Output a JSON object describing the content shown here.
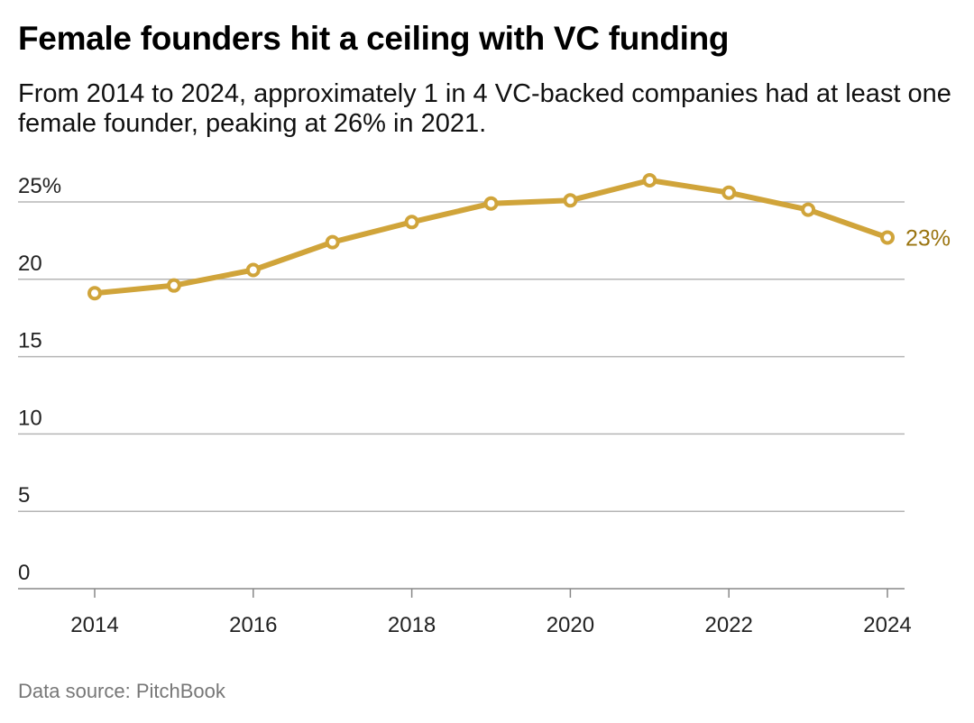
{
  "chart_data": {
    "type": "line",
    "title": "Female founders hit a ceiling with VC funding",
    "subtitle": "From 2014 to 2024, approximately 1 in 4 VC-backed companies had at least one female founder, peaking at 26% in 2021.",
    "source": "Data source: PitchBook",
    "x": [
      2014,
      2015,
      2016,
      2017,
      2018,
      2019,
      2020,
      2021,
      2022,
      2023,
      2024
    ],
    "series": [
      {
        "values": [
          19.1,
          19.6,
          20.6,
          22.4,
          23.7,
          24.9,
          25.1,
          26.4,
          25.6,
          24.5,
          22.7
        ],
        "color": "#d0a43a"
      }
    ],
    "end_label": "23%",
    "end_label_color": "#9a7410",
    "ylim": [
      0,
      25
    ],
    "yticks": [
      {
        "value": 0,
        "label": "0"
      },
      {
        "value": 5,
        "label": "5"
      },
      {
        "value": 10,
        "label": "10"
      },
      {
        "value": 15,
        "label": "15"
      },
      {
        "value": 20,
        "label": "20"
      },
      {
        "value": 25,
        "label": "25%"
      }
    ],
    "xticks": [
      {
        "value": 2014,
        "label": "2014"
      },
      {
        "value": 2016,
        "label": "2016"
      },
      {
        "value": 2018,
        "label": "2018"
      },
      {
        "value": 2020,
        "label": "2020"
      },
      {
        "value": 2022,
        "label": "2022"
      },
      {
        "value": 2024,
        "label": "2024"
      }
    ],
    "grid": true,
    "legend": "none"
  }
}
